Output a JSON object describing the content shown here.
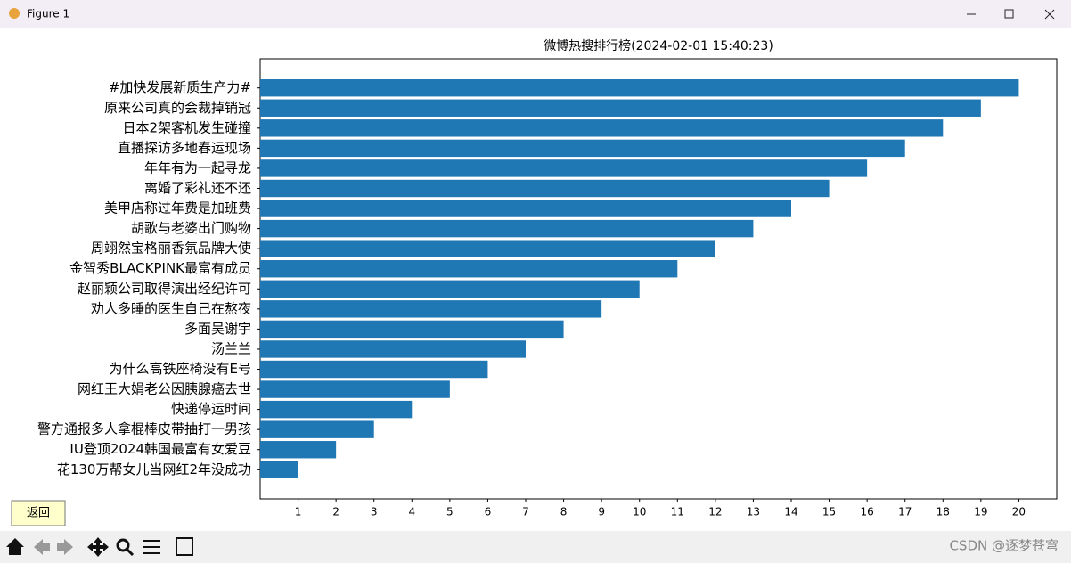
{
  "window": {
    "title": "Figure 1"
  },
  "button": "返回",
  "watermark": "CSDN @逐梦苍穹",
  "chart_data": {
    "type": "barh",
    "title": "微博热搜排行榜(2024-02-01 15:40:23)",
    "categories": [
      "#加快发展新质生产力#",
      "原来公司真的会裁掉销冠",
      "日本2架客机发生碰撞",
      "直播探访多地春运现场",
      "年年有为一起寻龙",
      "离婚了彩礼还不还",
      "美甲店称过年费是加班费",
      "胡歌与老婆出门购物",
      "周翊然宝格丽香氛品牌大使",
      "金智秀BLACKPINK最富有成员",
      "赵丽颖公司取得演出经纪许可",
      "劝人多睡的医生自己在熬夜",
      "多面吴谢宇",
      "汤兰兰",
      "为什么高铁座椅没有E号",
      "网红王大娟老公因胰腺癌去世",
      "快递停运时间",
      "警方通报多人拿棍棒皮带抽打一男孩",
      "IU登顶2024韩国最富有女爱豆",
      "花130万帮女儿当网红2年没成功"
    ],
    "values": [
      20,
      19,
      18,
      17,
      16,
      15,
      14,
      13,
      12,
      11,
      10,
      9,
      8,
      7,
      6,
      5,
      4,
      3,
      2,
      1
    ],
    "color": "#1f77b4",
    "xlim": [
      0,
      21
    ],
    "xticks": [
      1,
      2,
      3,
      4,
      5,
      6,
      7,
      8,
      9,
      10,
      11,
      12,
      13,
      14,
      15,
      16,
      17,
      18,
      19,
      20
    ]
  }
}
